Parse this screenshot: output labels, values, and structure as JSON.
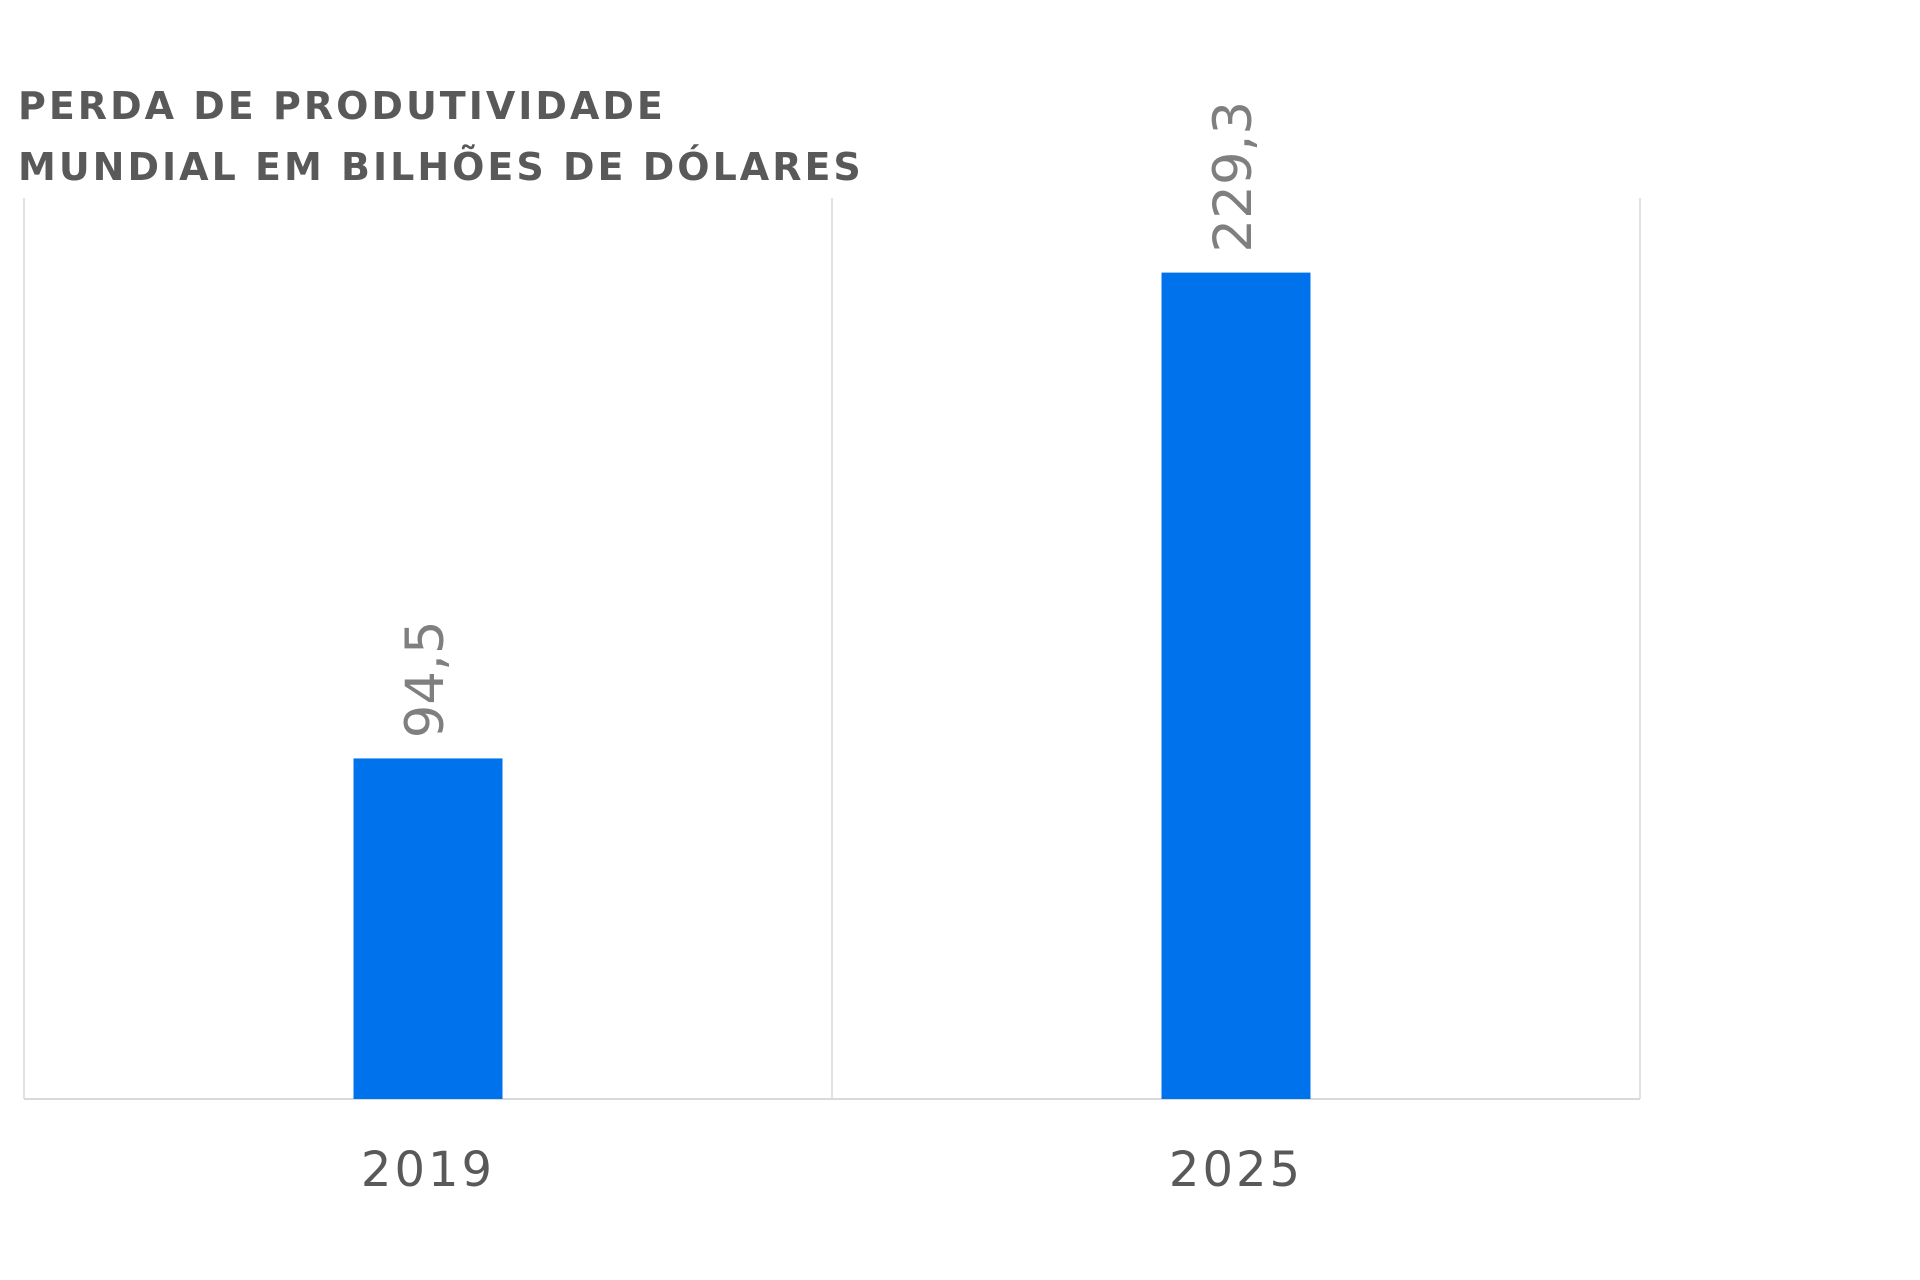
{
  "title_lines": [
    "PERDA DE PRODUTIVIDADE",
    "MUNDIAL EM BILHÕES DE DÓLARES"
  ],
  "colors": {
    "bar": "#0073EC",
    "data_label": "#7F7F7F",
    "tick_label": "#595959",
    "title": "#595959",
    "grid": "#D9D9D9"
  },
  "chart_data": {
    "type": "bar",
    "title": "PERDA DE PRODUTIVIDADE MUNDIAL EM BILHÕES DE DÓLARES",
    "xlabel": "",
    "ylabel": "",
    "categories": [
      "2019",
      "2025"
    ],
    "values": [
      94.5,
      229.3
    ],
    "data_labels": [
      "94,5",
      "229,3"
    ],
    "data_label_orientation": "rotated-vertical",
    "ylim": [
      0,
      250
    ],
    "grid": "vertical category separators",
    "legend": "none"
  }
}
